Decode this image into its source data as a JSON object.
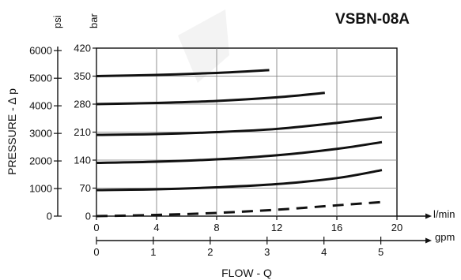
{
  "chart_data": {
    "type": "line",
    "title": "VSBN-08A",
    "xlabel": "FLOW - Q",
    "ylabel": "PRESSURE - ∆ p",
    "x_unit_primary": "l/min",
    "x_unit_secondary": "gpm",
    "y_unit_primary": "bar",
    "y_unit_secondary": "psi",
    "xlim": [
      0,
      20
    ],
    "ylim": [
      0,
      420
    ],
    "grid": true,
    "x_ticks_lmin": [
      "0",
      "4",
      "8",
      "12",
      "16",
      "20"
    ],
    "x_ticks_gpm": [
      "0",
      "1",
      "2",
      "3",
      "4",
      "5"
    ],
    "gpm_tick_values_lmin": [
      0,
      3.785,
      7.571,
      11.356,
      15.142,
      18.927
    ],
    "y_ticks_bar": [
      "0",
      "70",
      "140",
      "210",
      "280",
      "350",
      "420"
    ],
    "y_ticks_psi": [
      "0",
      "1000",
      "2000",
      "3000",
      "4000",
      "5000",
      "6000"
    ],
    "psi_tick_values_bar": [
      0,
      68.9,
      137.9,
      206.8,
      275.8,
      344.7,
      413.7
    ],
    "series": [
      {
        "style": "solid",
        "x": [
          0,
          4,
          8,
          11.5
        ],
        "y": [
          350,
          353,
          358,
          365
        ]
      },
      {
        "style": "solid",
        "x": [
          0,
          4,
          8,
          12,
          15.2
        ],
        "y": [
          280,
          283,
          288,
          297,
          308
        ]
      },
      {
        "style": "solid",
        "x": [
          0,
          4,
          8,
          12,
          16,
          19
        ],
        "y": [
          203,
          205,
          210,
          218,
          233,
          247
        ]
      },
      {
        "style": "solid",
        "x": [
          0,
          4,
          8,
          12,
          16,
          19
        ],
        "y": [
          133,
          136,
          142,
          152,
          168,
          185
        ]
      },
      {
        "style": "solid",
        "x": [
          0,
          4,
          8,
          12,
          16,
          19
        ],
        "y": [
          65,
          67,
          72,
          80,
          95,
          115
        ]
      },
      {
        "style": "dashed",
        "x": [
          0,
          4,
          8,
          12,
          16,
          19
        ],
        "y": [
          0,
          3,
          8,
          16,
          27,
          35
        ]
      }
    ]
  }
}
